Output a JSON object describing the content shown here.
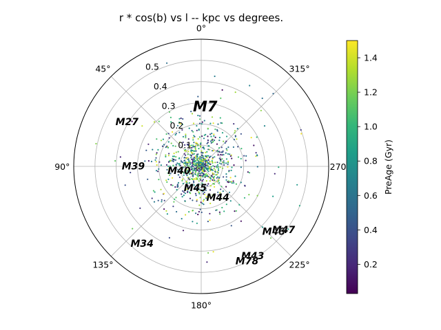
{
  "chart_data": {
    "type": "scatter",
    "projection": "polar",
    "title": "r * cos(b) vs l -- kpc vs degrees.",
    "theta_zero_location": "top",
    "theta_direction": "counterclockwise",
    "theta_ticks": [
      {
        "deg": 0,
        "label": "0°"
      },
      {
        "deg": 45,
        "label": "45°"
      },
      {
        "deg": 90,
        "label": "90°"
      },
      {
        "deg": 135,
        "label": "135°"
      },
      {
        "deg": 180,
        "label": "180°"
      },
      {
        "deg": 225,
        "label": "225°"
      },
      {
        "deg": 270,
        "label": "270°"
      },
      {
        "deg": 315,
        "label": "315°"
      }
    ],
    "r_ticks": [
      {
        "value": 0.1,
        "label": "0.1"
      },
      {
        "value": 0.2,
        "label": "0.2"
      },
      {
        "value": 0.3,
        "label": "0.3"
      },
      {
        "value": 0.4,
        "label": "0.4"
      },
      {
        "value": 0.5,
        "label": "0.5"
      }
    ],
    "rlim": [
      0,
      0.6
    ],
    "grid": true,
    "colorbar": {
      "label": "PreAge (Gyr)",
      "colormap": "viridis",
      "range": [
        0.03,
        1.5
      ],
      "ticks": [
        {
          "value": 0.2,
          "label": "0.2"
        },
        {
          "value": 0.4,
          "label": "0.4"
        },
        {
          "value": 0.6,
          "label": "0.6"
        },
        {
          "value": 0.8,
          "label": "0.8"
        },
        {
          "value": 1.0,
          "label": "1.0"
        },
        {
          "value": 1.2,
          "label": "1.2"
        },
        {
          "value": 1.4,
          "label": "1.4"
        }
      ]
    },
    "labeled_clusters": [
      {
        "name": "M7",
        "l": 355.9,
        "r": 0.26,
        "big": true
      },
      {
        "name": "M27",
        "l": 60.8,
        "r": 0.4,
        "big": false
      },
      {
        "name": "M39",
        "l": 92.5,
        "r": 0.32,
        "big": false
      },
      {
        "name": "M40",
        "l": 109.0,
        "r": 0.11,
        "big": false
      },
      {
        "name": "M45",
        "l": 166.6,
        "r": 0.12,
        "big": false
      },
      {
        "name": "M44",
        "l": 205.9,
        "r": 0.18,
        "big": false
      },
      {
        "name": "M34",
        "l": 143.7,
        "r": 0.47,
        "big": false
      },
      {
        "name": "M48",
        "l": 226.6,
        "r": 0.47,
        "big": false
      },
      {
        "name": "M47",
        "l": 230.9,
        "r": 0.5,
        "big": false
      },
      {
        "name": "M43",
        "l": 209.0,
        "r": 0.5,
        "big": false
      },
      {
        "name": "M78",
        "l": 205.0,
        "r": 0.51,
        "big": false
      }
    ],
    "scatter": {
      "n_points": 1000,
      "r_distribution": "concentrated near center, most within 0.25 kpc, sparse to 0.5",
      "note": "individual points not legible; rendered as a representative random sample"
    }
  }
}
